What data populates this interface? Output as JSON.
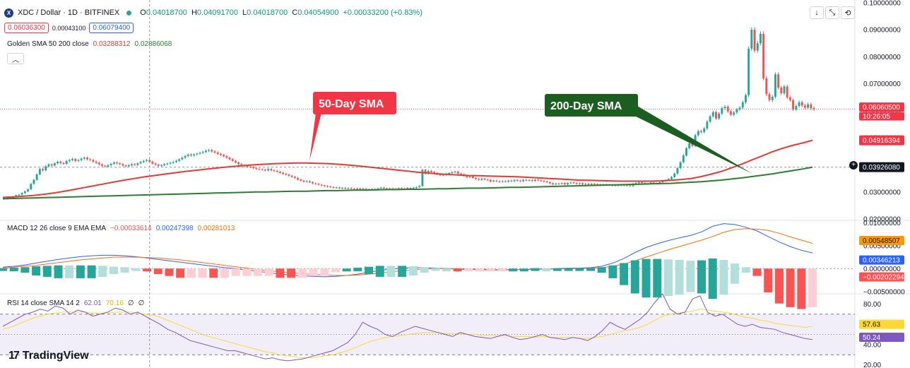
{
  "header": {
    "symbol_icon": "X",
    "title": "XDC / Dollar · 1D · BITFINEX",
    "ohlc": [
      {
        "k": "O",
        "v": "0.04018700"
      },
      {
        "k": "H",
        "v": "0.04091700"
      },
      {
        "k": "L",
        "v": "0.04018700"
      },
      {
        "k": "C",
        "v": "0.04054900"
      },
      {
        "k": "",
        "v": "+0.00033200 (+0.83%)"
      }
    ],
    "sell_price": "0.06036300",
    "spread": "0.00043100",
    "buy_price": "0.06079400"
  },
  "toolbar": {
    "down_icon": "↓",
    "expand_icon": "⤡",
    "reset_icon": "⟲"
  },
  "legends": {
    "sma": {
      "name": "Golden SMA 50 200 close",
      "v1": "0.03288312",
      "v2": "0.02886068"
    },
    "macd": {
      "name": "MACD 12 26 close 9 EMA EMA",
      "v1": "−0.00033614",
      "v2": "0.00247398",
      "v3": "0.00281013"
    },
    "rsi": {
      "name": "RSI 14 close SMA 14 2",
      "v1": "62.01",
      "v2": "70.16",
      "v3": "∅",
      "v4": "∅"
    }
  },
  "annotations": {
    "sma50": "50-Day SMA",
    "sma200": "200-Day SMA"
  },
  "plus_icon": "+",
  "logo": {
    "mark": "17",
    "text": "TradingView"
  },
  "colors": {
    "up": "#26a69a",
    "down": "#ef5350",
    "sma50": "#e53935",
    "sma200": "#2e7d32",
    "macd": "#2962ff",
    "signal": "#ff6d00",
    "rsi": "#7e57c2",
    "rsi_ma": "#fdd835"
  },
  "chart_data": [
    {
      "type": "candlestick",
      "title": "XDC / Dollar · 1D · BITFINEX",
      "ylim": [
        0.0195,
        0.101
      ],
      "y_ticks": [
        "0.10000000",
        "0.09000000",
        "0.08000000",
        "0.07000000",
        "0.06000000",
        "0.05000000",
        "0.04000000",
        "0.03000000",
        "0.02000000"
      ],
      "y_tick_values": [
        0.1,
        0.09,
        0.08,
        0.07,
        0.06,
        0.05,
        0.04,
        0.03,
        0.02
      ],
      "current_price_label": "0.06060500",
      "countdown_label": "10:26:05",
      "sma50_label": "0.04916394",
      "sma200_label": "0.03926080",
      "crosshair_value": 0.0392,
      "crosshair_index": 49,
      "close": [
        0.0275,
        0.0278,
        0.0277,
        0.0282,
        0.0288,
        0.029,
        0.0296,
        0.0302,
        0.031,
        0.033,
        0.0345,
        0.0365,
        0.0385,
        0.038,
        0.0395,
        0.0402,
        0.0398,
        0.0406,
        0.0412,
        0.0407,
        0.0404,
        0.0414,
        0.0418,
        0.0422,
        0.0415,
        0.0418,
        0.0423,
        0.0427,
        0.0421,
        0.0418,
        0.0412,
        0.0408,
        0.0402,
        0.0397,
        0.0394,
        0.0399,
        0.0404,
        0.0409,
        0.0406,
        0.0403,
        0.0398,
        0.0395,
        0.0399,
        0.0403,
        0.04,
        0.0406,
        0.0411,
        0.0415,
        0.0418,
        0.0412,
        0.0405,
        0.0401,
        0.0397,
        0.0399,
        0.0403,
        0.0405,
        0.0408,
        0.0411,
        0.0415,
        0.0421,
        0.0427,
        0.0433,
        0.0438,
        0.0435,
        0.0439,
        0.0442,
        0.0445,
        0.0448,
        0.0452,
        0.0455,
        0.045,
        0.0446,
        0.0441,
        0.0437,
        0.0432,
        0.0427,
        0.0421,
        0.0415,
        0.0409,
        0.0403,
        0.0399,
        0.0396,
        0.0394,
        0.0392,
        0.0388,
        0.0385,
        0.0384,
        0.0382,
        0.038,
        0.0385,
        0.038,
        0.0378,
        0.0375,
        0.0371,
        0.0367,
        0.0364,
        0.036,
        0.0356,
        0.0352,
        0.0346,
        0.0342,
        0.0338,
        0.034,
        0.0336,
        0.0332,
        0.033,
        0.0327,
        0.0324,
        0.0322,
        0.032,
        0.0318,
        0.0316,
        0.0317,
        0.0314,
        0.0315,
        0.0313,
        0.0314,
        0.0312,
        0.0311,
        0.0313,
        0.031,
        0.0312,
        0.031,
        0.0309,
        0.0311,
        0.0308,
        0.0313,
        0.0316,
        0.0313,
        0.0311,
        0.0313,
        0.031,
        0.0312,
        0.0314,
        0.0313,
        0.0312,
        0.0315,
        0.0313,
        0.0316,
        0.0318,
        0.0322,
        0.0382,
        0.0368,
        0.0378,
        0.0374,
        0.037,
        0.0366,
        0.0362,
        0.0364,
        0.0367,
        0.037,
        0.0373,
        0.0375,
        0.0368,
        0.0365,
        0.036,
        0.0355,
        0.0358,
        0.0352,
        0.0348,
        0.0345,
        0.0349,
        0.0346,
        0.0344,
        0.0339,
        0.0342,
        0.034,
        0.0338,
        0.034,
        0.0338,
        0.0342,
        0.034,
        0.0344,
        0.0342,
        0.034,
        0.0345,
        0.0343,
        0.0344,
        0.0341,
        0.0345,
        0.0343,
        0.0341,
        0.0339,
        0.0336,
        0.0332,
        0.0328,
        0.0331,
        0.033,
        0.0333,
        0.0328,
        0.0333,
        0.0335,
        0.0333,
        0.033,
        0.0332,
        0.0328,
        0.033,
        0.0327,
        0.033,
        0.0329,
        0.0325,
        0.0328,
        0.0326,
        0.0327,
        0.0326,
        0.0324,
        0.0325,
        0.0324,
        0.0326,
        0.0324,
        0.0325,
        0.0322,
        0.033,
        0.0333,
        0.0336,
        0.0333,
        0.0329,
        0.0332,
        0.0335,
        0.0332,
        0.0331,
        0.0336,
        0.034,
        0.0343,
        0.0348,
        0.0355,
        0.0368,
        0.0388,
        0.041,
        0.0435,
        0.0462,
        0.048,
        0.047,
        0.051,
        0.0525,
        0.0522,
        0.0535,
        0.056,
        0.058,
        0.0595,
        0.0572,
        0.059,
        0.061,
        0.0615,
        0.0598,
        0.0586,
        0.0594,
        0.0605,
        0.0612,
        0.0632,
        0.0658,
        0.083,
        0.09,
        0.0823,
        0.085,
        0.0885,
        0.072,
        0.0662,
        0.064,
        0.0652,
        0.0735,
        0.0686,
        0.0665,
        0.069,
        0.065,
        0.064,
        0.0605,
        0.0618,
        0.0632,
        0.062,
        0.0612,
        0.0624,
        0.061,
        0.0606
      ],
      "sma50": [
        0.028,
        0.0282,
        0.0284,
        0.0287,
        0.0291,
        0.0296,
        0.0302,
        0.0309,
        0.0316,
        0.0323,
        0.033,
        0.0337,
        0.0344,
        0.035,
        0.0356,
        0.0361,
        0.0366,
        0.0371,
        0.0376,
        0.038,
        0.0384,
        0.0388,
        0.0392,
        0.0395,
        0.0398,
        0.0401,
        0.0403,
        0.0405,
        0.0406,
        0.0407,
        0.0407,
        0.0406,
        0.0405,
        0.0403,
        0.04,
        0.0397,
        0.0393,
        0.0389,
        0.0385,
        0.0381,
        0.0377,
        0.0373,
        0.037,
        0.0367,
        0.0365,
        0.0363,
        0.0361,
        0.036,
        0.0359,
        0.0358,
        0.0357,
        0.0356,
        0.0354,
        0.0352,
        0.035,
        0.0348,
        0.0346,
        0.0344,
        0.0343,
        0.0342,
        0.0341,
        0.034,
        0.034,
        0.034,
        0.034,
        0.0341,
        0.0343,
        0.0346,
        0.035,
        0.0357,
        0.0366,
        0.0376,
        0.0389,
        0.0403,
        0.0418,
        0.0433,
        0.0448,
        0.0461,
        0.0472,
        0.0481,
        0.0491
      ],
      "sma200": [
        0.0275,
        0.0276,
        0.0277,
        0.0278,
        0.0279,
        0.028,
        0.0281,
        0.0282,
        0.0283,
        0.0284,
        0.0285,
        0.0286,
        0.0287,
        0.0288,
        0.0289,
        0.029,
        0.0291,
        0.0292,
        0.0293,
        0.0294,
        0.0295,
        0.0296,
        0.0297,
        0.0298,
        0.0299,
        0.03,
        0.03,
        0.0301,
        0.0302,
        0.0303,
        0.0303,
        0.0304,
        0.0305,
        0.0305,
        0.0306,
        0.0307,
        0.0307,
        0.0308,
        0.0309,
        0.0309,
        0.031,
        0.031,
        0.0311,
        0.0312,
        0.0312,
        0.0313,
        0.0314,
        0.0314,
        0.0315,
        0.0316,
        0.0317,
        0.0317,
        0.0318,
        0.0319,
        0.032,
        0.0321,
        0.0322,
        0.0323,
        0.0324,
        0.0325,
        0.0326,
        0.0327,
        0.0328,
        0.0329,
        0.033,
        0.0331,
        0.0332,
        0.0334,
        0.0336,
        0.0338,
        0.0341,
        0.0344,
        0.0348,
        0.0352,
        0.0357,
        0.0362,
        0.0367,
        0.0373,
        0.0379,
        0.0385,
        0.0392
      ]
    },
    {
      "type": "line",
      "title": "MACD 12 26 close 9 EMA EMA",
      "ylim": [
        -0.0055,
        0.0105
      ],
      "y_ticks": [
        "0.01000000",
        "0.00500000",
        "0.00000000",
        "−0.00500000"
      ],
      "y_tick_values": [
        0.01,
        0.005,
        0,
        -0.005
      ],
      "labels": [
        "0.00548507",
        "0.00346213",
        "−0.00202294"
      ],
      "macd": [
        0.0003,
        0.0005,
        0.0008,
        0.0012,
        0.0016,
        0.002,
        0.0023,
        0.0026,
        0.0028,
        0.0029,
        0.0029,
        0.0028,
        0.0026,
        0.0023,
        0.002,
        0.0017,
        0.0014,
        0.0011,
        0.0008,
        0.0005,
        0.0002,
        0.0,
        -0.0003,
        -0.0006,
        -0.0009,
        -0.0012,
        -0.0014,
        -0.0016,
        -0.0017,
        -0.0018,
        -0.0017,
        -0.0015,
        -0.0012,
        -0.0008,
        -0.0004,
        -0.0001,
        0.0001,
        0.0002,
        0.0002,
        0.0001,
        0.0,
        -0.0001,
        -0.0002,
        -0.0002,
        -0.0003,
        -0.0003,
        -0.0002,
        -0.0002,
        -0.0001,
        -0.0001,
        0.0,
        0.0001,
        0.0001,
        0.0002,
        0.0005,
        0.0012,
        0.0022,
        0.0035,
        0.0046,
        0.0054,
        0.0061,
        0.0067,
        0.0072,
        0.008,
        0.0092,
        0.0098,
        0.0096,
        0.009,
        0.0082,
        0.007,
        0.0058,
        0.0048,
        0.004,
        0.0034
      ],
      "signal": [
        0.0002,
        0.0003,
        0.0005,
        0.0007,
        0.001,
        0.0013,
        0.0016,
        0.0019,
        0.0021,
        0.0023,
        0.0025,
        0.0025,
        0.0025,
        0.0024,
        0.0023,
        0.0021,
        0.0019,
        0.0016,
        0.0013,
        0.001,
        0.0007,
        0.0004,
        0.0001,
        -0.0002,
        -0.0005,
        -0.0007,
        -0.0009,
        -0.0011,
        -0.0013,
        -0.0014,
        -0.0015,
        -0.0015,
        -0.0014,
        -0.0012,
        -0.001,
        -0.0007,
        -0.0005,
        -0.0003,
        -0.0001,
        0.0,
        0.0,
        0.0,
        -0.0001,
        -0.0001,
        -0.0002,
        -0.0002,
        -0.0002,
        -0.0002,
        -0.0002,
        -0.0001,
        -0.0001,
        0.0,
        0.0,
        0.0001,
        0.0002,
        0.0005,
        0.001,
        0.0017,
        0.0025,
        0.0033,
        0.0041,
        0.0048,
        0.0055,
        0.0062,
        0.007,
        0.0079,
        0.0085,
        0.0087,
        0.0086,
        0.0083,
        0.0077,
        0.0069,
        0.0062,
        0.0055
      ]
    },
    {
      "type": "line",
      "title": "RSI 14 close SMA 14 2",
      "ylim": [
        17,
        90
      ],
      "y_ticks": [
        "80.00",
        "40.00",
        "20.00"
      ],
      "y_tick_values": [
        80,
        40,
        20
      ],
      "band": [
        30,
        70
      ],
      "midline": 50,
      "labels": [
        "57.63",
        "50.24"
      ],
      "rsi": [
        58,
        62,
        66,
        70,
        72,
        75,
        73,
        78,
        76,
        70,
        74,
        72,
        68,
        70,
        72,
        76,
        74,
        70,
        72,
        68,
        64,
        60,
        55,
        52,
        48,
        44,
        42,
        40,
        38,
        36,
        34,
        34,
        32,
        30,
        28,
        26,
        27,
        25,
        24,
        25,
        26,
        28,
        30,
        32,
        34,
        38,
        42,
        50,
        62,
        58,
        55,
        50,
        48,
        52,
        55,
        58,
        56,
        54,
        52,
        50,
        48,
        52,
        50,
        48,
        47,
        46,
        48,
        50,
        47,
        45,
        46,
        48,
        50,
        47,
        46,
        45,
        47,
        46,
        44,
        48,
        54,
        62,
        58,
        55,
        60,
        65,
        72,
        82,
        90,
        75,
        70,
        72,
        85,
        88,
        72,
        68,
        70,
        65,
        60,
        58,
        60,
        57,
        56,
        55,
        52,
        50,
        48,
        46,
        45
      ],
      "rsi_ma": [
        55,
        57,
        60,
        63,
        66,
        68,
        70,
        71,
        72,
        72,
        72,
        72,
        71,
        71,
        71,
        72,
        72,
        72,
        71,
        70,
        69,
        67,
        64,
        61,
        58,
        55,
        52,
        49,
        47,
        45,
        43,
        41,
        39,
        37,
        35,
        33,
        32,
        30,
        29,
        28,
        27,
        27,
        28,
        29,
        30,
        32,
        34,
        37,
        40,
        43,
        45,
        47,
        48,
        49,
        50,
        51,
        52,
        52,
        52,
        51,
        51,
        51,
        50,
        50,
        49,
        49,
        49,
        49,
        48,
        48,
        48,
        47,
        48,
        47,
        47,
        47,
        47,
        46,
        46,
        47,
        48,
        50,
        52,
        54,
        55,
        57,
        60,
        64,
        68,
        70,
        71,
        72,
        73,
        75,
        74,
        73,
        72,
        71,
        69,
        67,
        66,
        64,
        63,
        61,
        60,
        59,
        58,
        57,
        58
      ]
    }
  ]
}
